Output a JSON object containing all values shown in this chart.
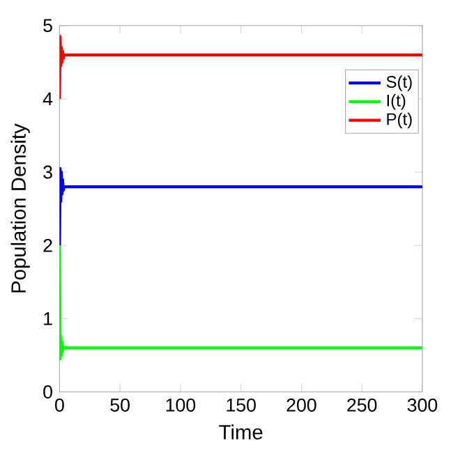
{
  "chart_data": {
    "type": "line",
    "xlabel": "Time",
    "ylabel": "Population Density",
    "xlim": [
      0,
      300
    ],
    "ylim": [
      0,
      5
    ],
    "xticks": [
      0,
      50,
      100,
      150,
      200,
      250,
      300
    ],
    "yticks": [
      0,
      1,
      2,
      3,
      4,
      5
    ],
    "legend": "top right",
    "grid": false,
    "line_style": "solid",
    "series": [
      {
        "name": "S(t)",
        "color": "#0000ff",
        "x": [
          0,
          0.5,
          1,
          1.5,
          2,
          2.5,
          3,
          4,
          6,
          300
        ],
        "values": [
          2,
          3.05,
          2.6,
          3,
          2.7,
          2.9,
          2.75,
          2.8,
          2.8,
          2.8
        ]
      },
      {
        "name": "I(t)",
        "color": "#00ff00",
        "x": [
          0,
          0.5,
          1,
          1.5,
          2,
          2.5,
          3,
          4,
          6,
          300
        ],
        "values": [
          2,
          0.45,
          0.75,
          0.5,
          0.68,
          0.55,
          0.62,
          0.6,
          0.6,
          0.6
        ]
      },
      {
        "name": "P(t)",
        "color": "#ff0000",
        "x": [
          0,
          0.5,
          1,
          1.5,
          2,
          2.5,
          3,
          4,
          6,
          300
        ],
        "values": [
          4,
          4.85,
          4.45,
          4.7,
          4.5,
          4.65,
          4.55,
          4.6,
          4.6,
          4.6
        ]
      }
    ]
  }
}
